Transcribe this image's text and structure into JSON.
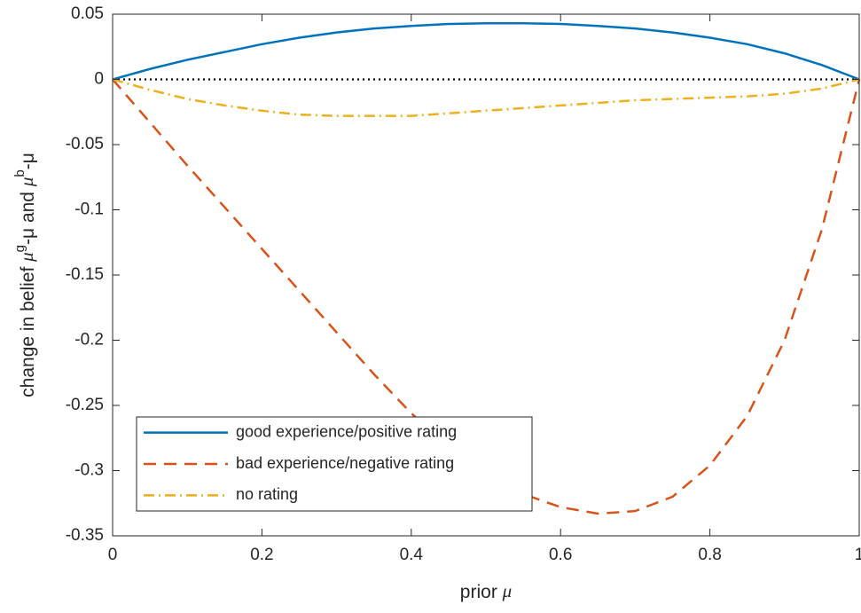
{
  "chart_data": {
    "type": "line",
    "xlabel": [
      "prior ",
      "μ"
    ],
    "ylabel": [
      "change in belief ",
      "μ",
      "g",
      "-μ and ",
      "μ",
      "b",
      "-μ"
    ],
    "x": [
      0,
      0.05,
      0.1,
      0.15,
      0.2,
      0.25,
      0.3,
      0.35,
      0.4,
      0.45,
      0.5,
      0.55,
      0.6,
      0.65,
      0.7,
      0.75,
      0.8,
      0.85,
      0.9,
      0.95,
      1
    ],
    "series": [
      {
        "name": "good experience/positive rating",
        "color": "#0072bd",
        "linestyle": "solid",
        "values": [
          0,
          0.008,
          0.015,
          0.021,
          0.027,
          0.032,
          0.036,
          0.039,
          0.041,
          0.0425,
          0.043,
          0.043,
          0.0425,
          0.041,
          0.039,
          0.036,
          0.032,
          0.027,
          0.02,
          0.011,
          0
        ]
      },
      {
        "name": "bad experience/negative rating",
        "color": "#d95319",
        "linestyle": "dashed",
        "values": [
          0,
          -0.033,
          -0.066,
          -0.098,
          -0.13,
          -0.162,
          -0.194,
          -0.226,
          -0.256,
          -0.282,
          -0.303,
          -0.318,
          -0.328,
          -0.333,
          -0.331,
          -0.32,
          -0.296,
          -0.258,
          -0.2,
          -0.115,
          0
        ]
      },
      {
        "name": "no rating",
        "color": "#edb120",
        "linestyle": "dashdot",
        "values": [
          0,
          -0.008,
          -0.015,
          -0.02,
          -0.024,
          -0.027,
          -0.028,
          -0.028,
          -0.028,
          -0.026,
          -0.024,
          -0.022,
          -0.02,
          -0.018,
          -0.016,
          -0.015,
          -0.014,
          -0.013,
          -0.011,
          -0.007,
          0
        ]
      }
    ],
    "hlines": [
      0
    ],
    "xlim": [
      0,
      1
    ],
    "xticks": [
      0,
      0.2,
      0.4,
      0.6,
      0.8,
      1
    ],
    "ylim": [
      -0.35,
      0.05
    ],
    "yticks": [
      -0.35,
      -0.3,
      -0.25,
      -0.2,
      -0.15,
      -0.1,
      -0.05,
      0,
      0.05
    ],
    "legend": "southwest"
  }
}
